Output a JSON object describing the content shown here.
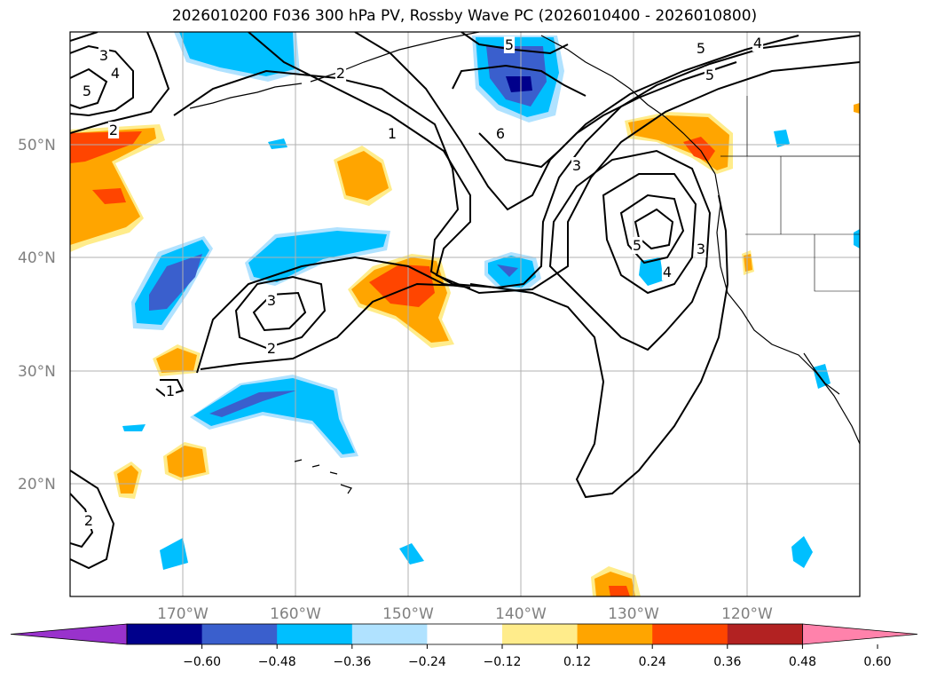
{
  "title": "2026010200 F036 300 hPa PV, Rossby Wave PC (2026010400 - 2026010800)",
  "map": {
    "lon_range": [
      -180,
      -110
    ],
    "lat_range": [
      10,
      60
    ],
    "lat_labels": [
      "50°N",
      "40°N",
      "30°N",
      "20°N"
    ],
    "lon_labels": [
      "170°W",
      "160°W",
      "150°W",
      "140°W",
      "130°W",
      "120°W"
    ],
    "label_color": "#808080",
    "grid_color": "#b0b0b0"
  },
  "contours": {
    "color": "#000000",
    "labels": [
      "3",
      "4",
      "5",
      "2",
      "2",
      "1",
      "5",
      "6",
      "3",
      "5",
      "4",
      "5",
      "3",
      "2",
      "1",
      "2",
      "5",
      "4",
      "3"
    ]
  },
  "colorbar": {
    "ticks": [
      "−0.60",
      "−0.48",
      "−0.36",
      "−0.24",
      "−0.12",
      "0.12",
      "0.24",
      "0.36",
      "0.48",
      "0.60"
    ],
    "colors": [
      "#9932cc",
      "#00008b",
      "#3a5fcd",
      "#00bfff",
      "#b0e2ff",
      "#ffffff",
      "#ffec8b",
      "#ffa500",
      "#ff4500",
      "#b22222",
      "#ff82ab"
    ]
  }
}
